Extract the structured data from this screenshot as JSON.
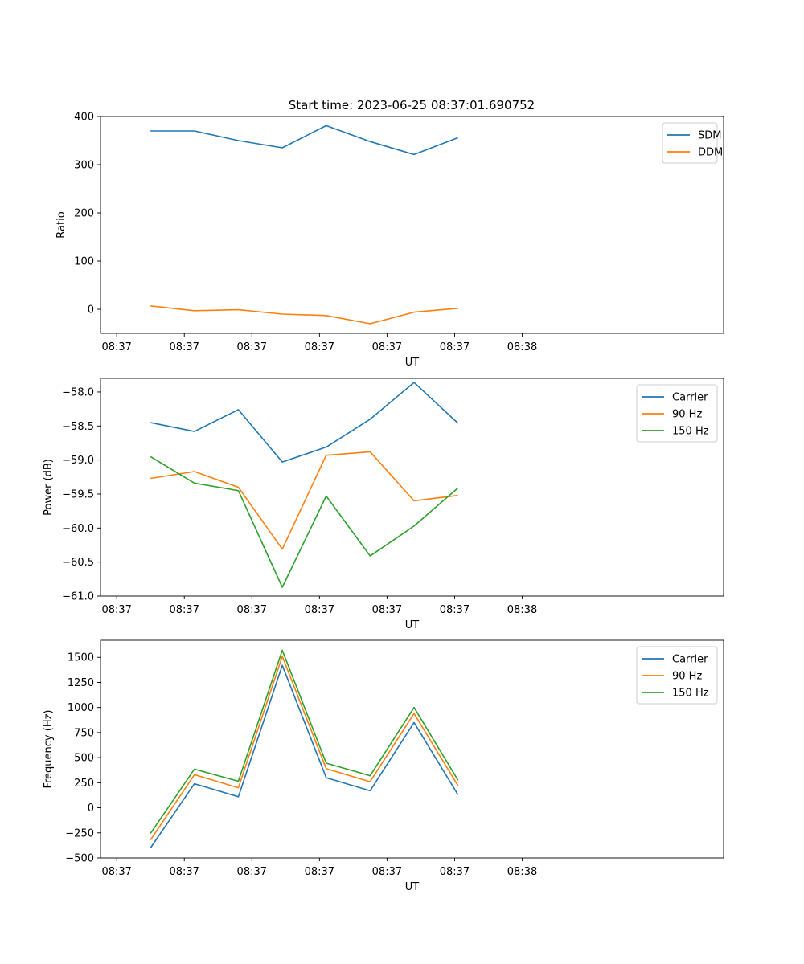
{
  "figure": {
    "title": "Start time: 2023-06-25 08:37:01.690752"
  },
  "chart_data": [
    {
      "type": "line",
      "title": "Start time: 2023-06-25 08:37:01.690752",
      "xlabel": "UT",
      "ylabel": "Ratio",
      "ylim": [
        -50,
        400
      ],
      "yticks": [
        0,
        100,
        200,
        300,
        400
      ],
      "ytick_labels": [
        "0",
        "100",
        "200",
        "300",
        "400"
      ],
      "xlim": [
        -0.24,
        8.98
      ],
      "xticks": [
        0,
        1,
        2,
        3,
        4,
        5,
        6
      ],
      "xtick_labels": [
        "08:37",
        "08:37",
        "08:37",
        "08:37",
        "08:37",
        "08:37",
        "08:38"
      ],
      "x": [
        0.5,
        1.15,
        1.8,
        2.45,
        3.1,
        3.75,
        4.4,
        5.05
      ],
      "legend": "top-right",
      "grid": false,
      "series": [
        {
          "name": "SDM",
          "color": "#1f77b4",
          "values": [
            370,
            370,
            350,
            335,
            381,
            348,
            321,
            356
          ]
        },
        {
          "name": "DDM",
          "color": "#ff7f0e",
          "values": [
            7,
            -3,
            -1,
            -10,
            -13,
            -30,
            -6,
            2
          ]
        }
      ]
    },
    {
      "type": "line",
      "xlabel": "UT",
      "ylabel": "Power (dB)",
      "ylim": [
        -61.0,
        -57.8
      ],
      "yticks": [
        -61.0,
        -60.5,
        -60.0,
        -59.5,
        -59.0,
        -58.5,
        -58.0
      ],
      "ytick_labels": [
        "−61.0",
        "−60.5",
        "−60.0",
        "−59.5",
        "−59.0",
        "−58.5",
        "−58.0"
      ],
      "xlim": [
        -0.24,
        8.98
      ],
      "xticks": [
        0,
        1,
        2,
        3,
        4,
        5,
        6
      ],
      "xtick_labels": [
        "08:37",
        "08:37",
        "08:37",
        "08:37",
        "08:37",
        "08:37",
        "08:38"
      ],
      "x": [
        0.5,
        1.15,
        1.8,
        2.45,
        3.1,
        3.75,
        4.4,
        5.05
      ],
      "legend": "top-right",
      "grid": false,
      "series": [
        {
          "name": "Carrier",
          "color": "#1f77b4",
          "values": [
            -58.45,
            -58.58,
            -58.26,
            -59.03,
            -58.81,
            -58.4,
            -57.86,
            -58.46
          ]
        },
        {
          "name": "90 Hz",
          "color": "#ff7f0e",
          "values": [
            -59.27,
            -59.17,
            -59.4,
            -60.31,
            -58.93,
            -58.88,
            -59.6,
            -59.52
          ]
        },
        {
          "name": "150 Hz",
          "color": "#2ca02c",
          "values": [
            -58.95,
            -59.34,
            -59.45,
            -60.87,
            -59.53,
            -60.41,
            -59.97,
            -59.41
          ]
        }
      ]
    },
    {
      "type": "line",
      "xlabel": "UT",
      "ylabel": "Frequency (Hz)",
      "ylim": [
        -500,
        1670
      ],
      "yticks": [
        -500,
        -250,
        0,
        250,
        500,
        750,
        1000,
        1250,
        1500
      ],
      "ytick_labels": [
        "−500",
        "−250",
        "0",
        "250",
        "500",
        "750",
        "1000",
        "1250",
        "1500"
      ],
      "xlim": [
        -0.24,
        8.98
      ],
      "xticks": [
        0,
        1,
        2,
        3,
        4,
        5,
        6
      ],
      "xtick_labels": [
        "08:37",
        "08:37",
        "08:37",
        "08:37",
        "08:37",
        "08:37",
        "08:38"
      ],
      "x": [
        0.5,
        1.15,
        1.8,
        2.45,
        3.1,
        3.75,
        4.4,
        5.05
      ],
      "legend": "top-right",
      "grid": false,
      "series": [
        {
          "name": "Carrier",
          "color": "#1f77b4",
          "values": [
            -400,
            240,
            110,
            1420,
            300,
            170,
            850,
            130
          ]
        },
        {
          "name": "90 Hz",
          "color": "#ff7f0e",
          "values": [
            -320,
            330,
            200,
            1510,
            390,
            260,
            940,
            220
          ]
        },
        {
          "name": "150 Hz",
          "color": "#2ca02c",
          "values": [
            -255,
            385,
            265,
            1570,
            445,
            320,
            1000,
            275
          ]
        }
      ]
    }
  ]
}
